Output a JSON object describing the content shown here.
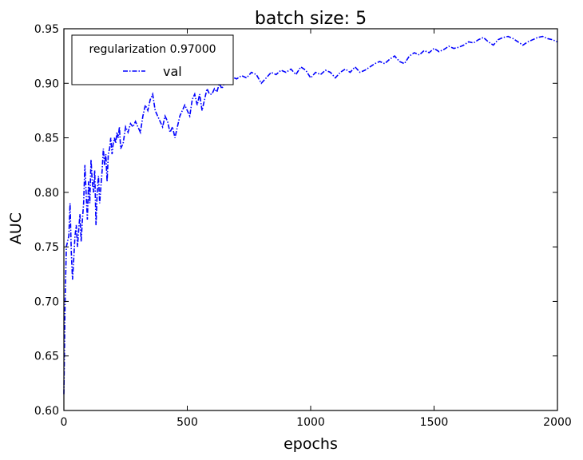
{
  "chart_data": {
    "type": "line",
    "title": "batch size: 5",
    "xlabel": "epochs",
    "ylabel": "AUC",
    "xlim": [
      0,
      2000
    ],
    "ylim": [
      0.6,
      0.95
    ],
    "xticks": [
      0,
      500,
      1000,
      1500,
      2000
    ],
    "xtick_labels": [
      "0",
      "500",
      "1000",
      "1500",
      "2000"
    ],
    "yticks": [
      0.6,
      0.65,
      0.7,
      0.75,
      0.8,
      0.85,
      0.9,
      0.95
    ],
    "ytick_labels": [
      "0.60",
      "0.65",
      "0.70",
      "0.75",
      "0.80",
      "0.85",
      "0.90",
      "0.95"
    ],
    "grid": false,
    "legend": {
      "title": "regularization 0.97000",
      "placement": "top-left",
      "entries": [
        "val"
      ]
    },
    "series": [
      {
        "name": "val",
        "color": "#0000ff",
        "linestyle": "dashdot",
        "x": [
          0,
          5,
          10,
          15,
          20,
          25,
          30,
          35,
          40,
          45,
          50,
          55,
          60,
          65,
          70,
          75,
          80,
          85,
          90,
          95,
          100,
          105,
          110,
          115,
          120,
          125,
          130,
          135,
          140,
          145,
          150,
          155,
          160,
          165,
          170,
          175,
          180,
          185,
          190,
          195,
          200,
          205,
          210,
          215,
          220,
          225,
          230,
          240,
          250,
          260,
          270,
          280,
          290,
          300,
          310,
          320,
          330,
          340,
          350,
          360,
          370,
          380,
          390,
          400,
          410,
          420,
          430,
          440,
          450,
          460,
          470,
          480,
          490,
          500,
          510,
          520,
          530,
          540,
          550,
          560,
          570,
          580,
          590,
          600,
          610,
          620,
          630,
          640,
          650,
          660,
          670,
          680,
          690,
          700,
          720,
          740,
          760,
          780,
          800,
          820,
          840,
          860,
          880,
          900,
          920,
          940,
          960,
          980,
          1000,
          1020,
          1040,
          1060,
          1080,
          1100,
          1120,
          1140,
          1160,
          1180,
          1200,
          1220,
          1240,
          1260,
          1280,
          1300,
          1320,
          1340,
          1360,
          1380,
          1400,
          1420,
          1440,
          1460,
          1480,
          1500,
          1520,
          1540,
          1560,
          1580,
          1600,
          1620,
          1640,
          1660,
          1680,
          1700,
          1720,
          1740,
          1760,
          1780,
          1800,
          1820,
          1840,
          1860,
          1880,
          1900,
          1920,
          1940,
          1960,
          1980,
          2000
        ],
        "y": [
          0.615,
          0.7,
          0.75,
          0.755,
          0.76,
          0.79,
          0.745,
          0.72,
          0.74,
          0.76,
          0.77,
          0.75,
          0.765,
          0.78,
          0.755,
          0.775,
          0.79,
          0.825,
          0.8,
          0.775,
          0.81,
          0.79,
          0.83,
          0.81,
          0.8,
          0.82,
          0.77,
          0.8,
          0.815,
          0.79,
          0.805,
          0.82,
          0.84,
          0.825,
          0.835,
          0.81,
          0.835,
          0.84,
          0.85,
          0.835,
          0.845,
          0.85,
          0.845,
          0.855,
          0.85,
          0.86,
          0.84,
          0.845,
          0.86,
          0.855,
          0.863,
          0.86,
          0.865,
          0.86,
          0.855,
          0.87,
          0.88,
          0.875,
          0.885,
          0.89,
          0.875,
          0.87,
          0.865,
          0.86,
          0.87,
          0.865,
          0.855,
          0.86,
          0.85,
          0.86,
          0.87,
          0.875,
          0.88,
          0.875,
          0.87,
          0.885,
          0.89,
          0.88,
          0.89,
          0.875,
          0.885,
          0.895,
          0.89,
          0.89,
          0.895,
          0.892,
          0.9,
          0.895,
          0.9,
          0.905,
          0.903,
          0.906,
          0.905,
          0.904,
          0.907,
          0.905,
          0.91,
          0.908,
          0.9,
          0.905,
          0.91,
          0.908,
          0.912,
          0.91,
          0.913,
          0.908,
          0.915,
          0.912,
          0.905,
          0.91,
          0.908,
          0.912,
          0.91,
          0.905,
          0.91,
          0.913,
          0.91,
          0.915,
          0.91,
          0.912,
          0.915,
          0.918,
          0.92,
          0.918,
          0.922,
          0.925,
          0.92,
          0.918,
          0.925,
          0.928,
          0.926,
          0.93,
          0.928,
          0.932,
          0.929,
          0.931,
          0.934,
          0.932,
          0.933,
          0.935,
          0.938,
          0.937,
          0.94,
          0.942,
          0.938,
          0.935,
          0.94,
          0.942,
          0.943,
          0.941,
          0.938,
          0.935,
          0.938,
          0.94,
          0.942,
          0.943,
          0.941,
          0.94,
          0.938
        ]
      }
    ]
  }
}
